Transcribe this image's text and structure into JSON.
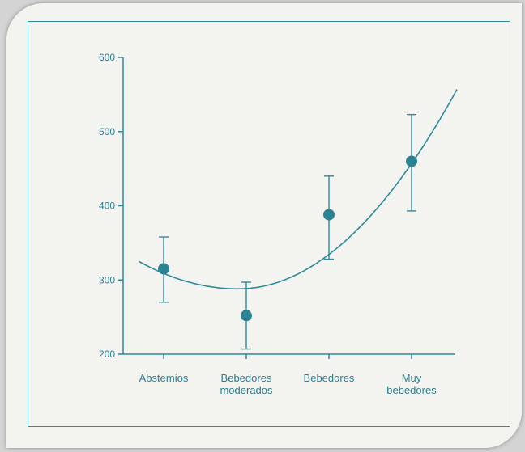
{
  "chart_data": {
    "type": "scatter",
    "title": "",
    "xlabel": "",
    "ylabel": "",
    "ylim": [
      200,
      600
    ],
    "yticks": [
      200,
      300,
      400,
      500,
      600
    ],
    "categories": [
      [
        "Abstemios"
      ],
      [
        "Bebedores",
        "moderados"
      ],
      [
        "Bebedores"
      ],
      [
        "Muy",
        "bebedores"
      ]
    ],
    "series": [
      {
        "points": [
          {
            "category": "Abstemios",
            "value": 315,
            "low": 270,
            "high": 358
          },
          {
            "category": "Bebedores moderados",
            "value": 252,
            "low": 207,
            "high": 297
          },
          {
            "category": "Bebedores",
            "value": 388,
            "low": 328,
            "high": 440
          },
          {
            "category": "Muy bebedores",
            "value": 460,
            "low": 393,
            "high": 523
          }
        ]
      }
    ],
    "trend_curve": {
      "type": "quadratic",
      "x_start": -0.3,
      "y_start": 325,
      "x_min": 0.9,
      "y_min": 288,
      "x_end": 3.55,
      "y_end": 557
    },
    "grid": false,
    "legend": "none",
    "colors": {
      "marker": "#2b8391",
      "curve": "#2f8a9a",
      "axis": "#2f8a9a",
      "text": "#2d7f8f"
    }
  }
}
